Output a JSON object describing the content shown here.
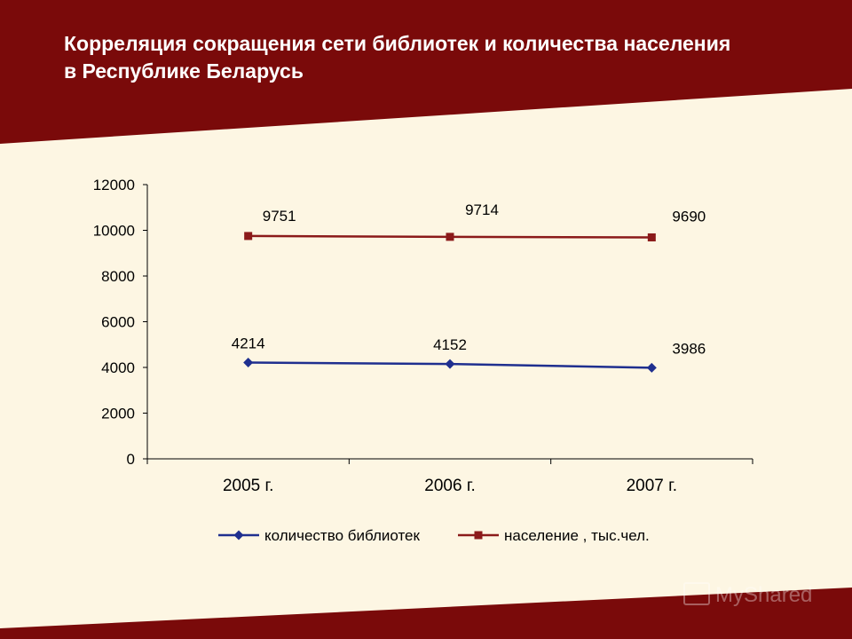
{
  "slide": {
    "title_line1": "Корреляция сокращения сети библиотек и количества населения",
    "title_line2": "в Республике Беларусь",
    "watermark": "MyShared",
    "colors": {
      "background": "#7a0a0a",
      "panel": "#fdf6e3"
    }
  },
  "chart_data": {
    "type": "line",
    "categories": [
      "2005 г.",
      "2006 г.",
      "2007 г."
    ],
    "series": [
      {
        "name": "количество библиотек",
        "values": [
          4214,
          4152,
          3986
        ],
        "color": "#1f2f8f",
        "marker": "diamond"
      },
      {
        "name": "население , тыс.чел.",
        "values": [
          9751,
          9714,
          9690
        ],
        "color": "#8b1a1a",
        "marker": "square"
      }
    ],
    "ylim": [
      0,
      12000
    ],
    "yticks": [
      "0",
      "2000",
      "4000",
      "6000",
      "8000",
      "10000",
      "12000"
    ],
    "grid": false,
    "legend": "bottom"
  }
}
